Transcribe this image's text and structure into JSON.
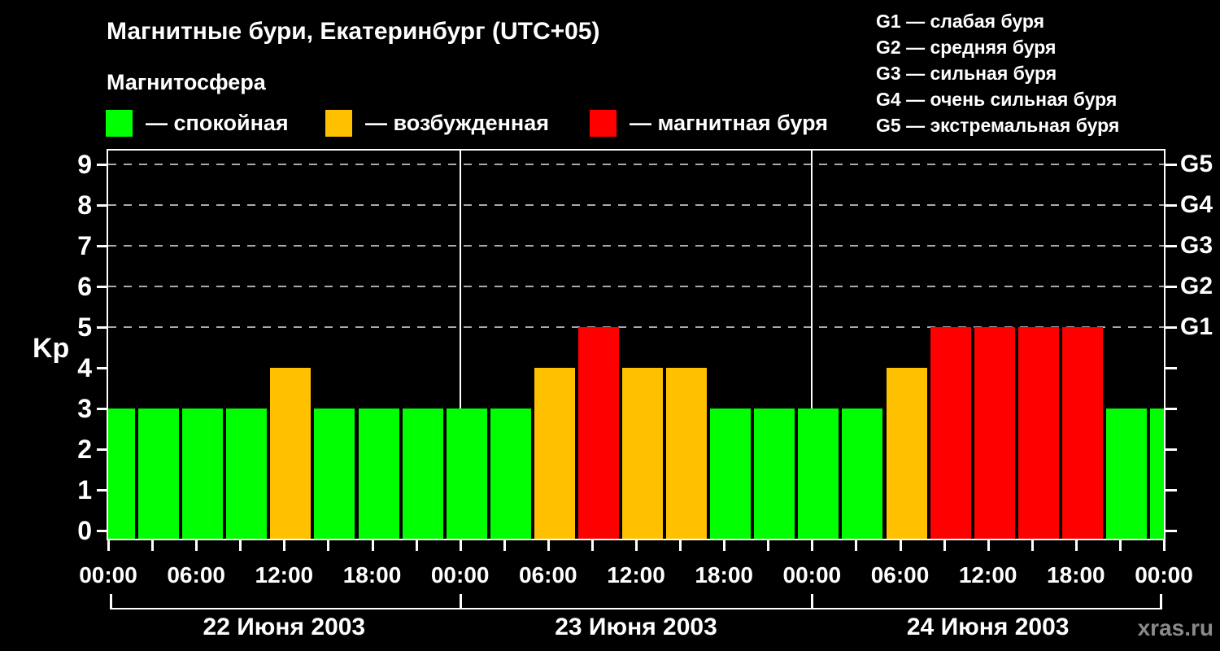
{
  "header": {
    "title": "Магнитные бури, Екатеринбург (UTC+05)",
    "subtitle": "Магнитосфера",
    "legend": [
      {
        "key": "quiet",
        "label": "— спокойная"
      },
      {
        "key": "excited",
        "label": "— возбужденная"
      },
      {
        "key": "storm",
        "label": "— магнитная буря"
      }
    ],
    "g_scale_legend": [
      "G1 — слабая буря",
      "G2 — средняя буря",
      "G3 — сильная буря",
      "G4 — очень сильная буря",
      "G5 — экстремальная буря"
    ]
  },
  "watermark": "xras.ru",
  "chart_data": {
    "type": "bar",
    "title": "Магнитные бури, Екатеринбург (UTC+05)",
    "ylabel": "Kp",
    "ylim": [
      0,
      9.5
    ],
    "y_ticks": [
      0,
      1,
      2,
      3,
      4,
      5,
      6,
      7,
      8,
      9
    ],
    "gridline_kp": [
      5,
      6,
      7,
      8,
      9
    ],
    "grid": "dashed horizontal at Kp 5-9",
    "legend_position": "top",
    "right_axis_labels": [
      {
        "kp": 9,
        "label": "G5"
      },
      {
        "kp": 8,
        "label": "G4"
      },
      {
        "kp": 7,
        "label": "G3"
      },
      {
        "kp": 6,
        "label": "G2"
      },
      {
        "kp": 5,
        "label": "G1"
      }
    ],
    "x_tick_interval_hours": 3,
    "x_label_interval_hours": 6,
    "x_labels": [
      "00:00",
      "06:00",
      "12:00",
      "18:00",
      "00:00",
      "06:00",
      "12:00",
      "18:00",
      "00:00",
      "06:00",
      "12:00",
      "18:00",
      "00:00"
    ],
    "days": [
      {
        "date": "22 Июня 2003",
        "kp_values": [
          3,
          3,
          3,
          3,
          4,
          3,
          3,
          3
        ]
      },
      {
        "date": "23 Июня 2003",
        "kp_values": [
          3,
          3,
          4,
          5,
          4,
          4,
          3,
          3
        ]
      },
      {
        "date": "24 Июня 2003",
        "kp_values": [
          3,
          3,
          4,
          5,
          5,
          5,
          5,
          3
        ]
      }
    ],
    "next_day_first_value": 3,
    "thresholds": {
      "quiet_max": 3,
      "excited": 4,
      "storm_min": 5
    },
    "colors": {
      "quiet": "#00ff00",
      "excited": "#ffc000",
      "storm": "#ff0000",
      "grid": "#aaaaaa",
      "axis": "#ffffff",
      "watermark": "#8a8a8a"
    }
  }
}
